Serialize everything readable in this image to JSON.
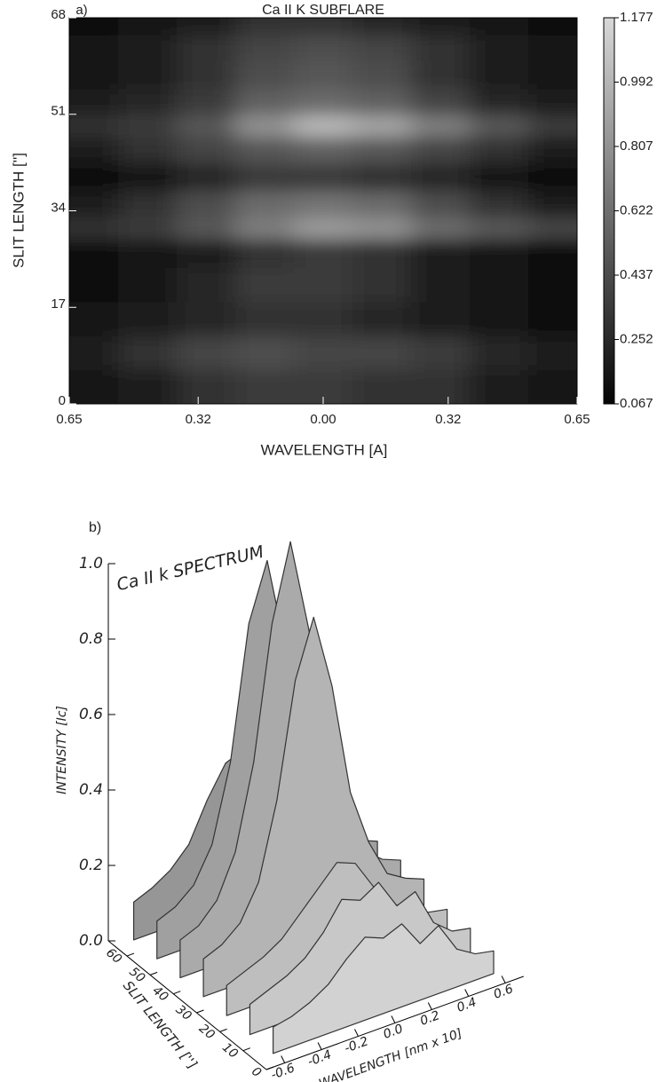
{
  "chart_data": [
    {
      "type": "heatmap",
      "panel": "a)",
      "title": "Ca II K SUBFLARE",
      "xlabel": "WAVELENGTH [A]",
      "ylabel": "SLIT LENGTH ['']",
      "xlim": [
        -0.65,
        0.65
      ],
      "xticks": [
        {
          "value": -0.65,
          "label": "0.65"
        },
        {
          "value": -0.32,
          "label": "0.32"
        },
        {
          "value": 0,
          "label": "0.00"
        },
        0.32,
        0.65
      ],
      "ylim": [
        0,
        68
      ],
      "yticks": [
        0,
        17,
        34,
        51,
        68
      ],
      "zlim": [
        0.067,
        1.177
      ],
      "zticks": [
        0.067,
        0.252,
        0.437,
        0.622,
        0.807,
        0.992,
        1.177
      ],
      "x": [
        -0.6,
        -0.45,
        -0.3,
        -0.15,
        0,
        0.15,
        0.3,
        0.45,
        0.6
      ],
      "y": [
        3,
        9,
        15,
        21,
        27,
        31,
        35,
        40,
        45,
        49,
        53,
        58,
        63,
        67
      ],
      "z": [
        [
          0.15,
          0.2,
          0.3,
          0.35,
          0.35,
          0.3,
          0.3,
          0.2,
          0.15
        ],
        [
          0.2,
          0.3,
          0.4,
          0.45,
          0.4,
          0.4,
          0.35,
          0.25,
          0.2
        ],
        [
          0.15,
          0.2,
          0.25,
          0.3,
          0.3,
          0.25,
          0.2,
          0.15,
          0.1
        ],
        [
          0.1,
          0.15,
          0.25,
          0.35,
          0.35,
          0.3,
          0.2,
          0.15,
          0.1
        ],
        [
          0.1,
          0.15,
          0.2,
          0.3,
          0.35,
          0.3,
          0.2,
          0.15,
          0.1
        ],
        [
          0.3,
          0.35,
          0.5,
          0.7,
          0.85,
          0.8,
          0.6,
          0.5,
          0.4
        ],
        [
          0.2,
          0.3,
          0.45,
          0.6,
          0.65,
          0.6,
          0.45,
          0.3,
          0.2
        ],
        [
          0.1,
          0.15,
          0.25,
          0.35,
          0.35,
          0.3,
          0.25,
          0.15,
          0.1
        ],
        [
          0.2,
          0.3,
          0.4,
          0.5,
          0.55,
          0.5,
          0.4,
          0.3,
          0.2
        ],
        [
          0.3,
          0.35,
          0.5,
          0.8,
          1.0,
          0.9,
          0.7,
          0.5,
          0.35
        ],
        [
          0.2,
          0.25,
          0.35,
          0.55,
          0.6,
          0.55,
          0.4,
          0.25,
          0.2
        ],
        [
          0.15,
          0.2,
          0.3,
          0.45,
          0.5,
          0.45,
          0.3,
          0.2,
          0.15
        ],
        [
          0.15,
          0.2,
          0.3,
          0.4,
          0.45,
          0.4,
          0.3,
          0.2,
          0.15
        ],
        [
          0.1,
          0.15,
          0.2,
          0.3,
          0.3,
          0.25,
          0.2,
          0.15,
          0.1
        ]
      ]
    },
    {
      "type": "surface3d",
      "panel": "b)",
      "title": "Ca II k SPECTRUM",
      "zlabel": "INTENSITY  [Ic]",
      "ylabel": "SLIT LENGTH ['']",
      "xlabel": "WAVELENGTH  [nm x 10]",
      "xlim": [
        -0.7,
        0.7
      ],
      "xticks": [
        -0.6,
        -0.4,
        -0.2,
        {
          "value": 0,
          "label": "0.0"
        },
        0.2,
        0.4,
        0.6
      ],
      "ylim": [
        0,
        68
      ],
      "yticks": [
        0,
        10,
        20,
        30,
        40,
        50,
        60
      ],
      "zlim": [
        0,
        1
      ],
      "zticks": [
        {
          "value": 0,
          "label": "0.0"
        },
        0.2,
        0.4,
        0.6,
        0.8,
        {
          "value": 1,
          "label": "1.0"
        }
      ],
      "x": [
        -0.6,
        -0.5,
        -0.4,
        -0.3,
        -0.2,
        -0.1,
        0,
        0.1,
        0.2,
        0.3,
        0.4,
        0.5,
        0.6
      ],
      "series": [
        {
          "slit": 65,
          "values": [
            0.1,
            0.12,
            0.15,
            0.2,
            0.3,
            0.38,
            0.4,
            0.35,
            0.25,
            0.18,
            0.13,
            0.1,
            0.09
          ]
        },
        {
          "slit": 55,
          "values": [
            0.1,
            0.12,
            0.16,
            0.25,
            0.45,
            0.8,
            0.95,
            0.7,
            0.4,
            0.25,
            0.15,
            0.12,
            0.1
          ]
        },
        {
          "slit": 45,
          "values": [
            0.1,
            0.12,
            0.17,
            0.28,
            0.5,
            0.85,
            1.05,
            0.8,
            0.45,
            0.27,
            0.16,
            0.12,
            0.1
          ]
        },
        {
          "slit": 35,
          "values": [
            0.1,
            0.12,
            0.16,
            0.25,
            0.45,
            0.75,
            0.9,
            0.7,
            0.4,
            0.25,
            0.15,
            0.12,
            0.1
          ]
        },
        {
          "slit": 25,
          "values": [
            0.08,
            0.1,
            0.12,
            0.15,
            0.2,
            0.25,
            0.3,
            0.28,
            0.2,
            0.14,
            0.1,
            0.08,
            0.07
          ]
        },
        {
          "slit": 15,
          "values": [
            0.08,
            0.1,
            0.12,
            0.15,
            0.2,
            0.27,
            0.25,
            0.28,
            0.2,
            0.22,
            0.12,
            0.08,
            0.07
          ]
        },
        {
          "slit": 5,
          "values": [
            0.07,
            0.08,
            0.1,
            0.13,
            0.18,
            0.22,
            0.2,
            0.22,
            0.15,
            0.18,
            0.1,
            0.07,
            0.06
          ]
        }
      ]
    }
  ]
}
